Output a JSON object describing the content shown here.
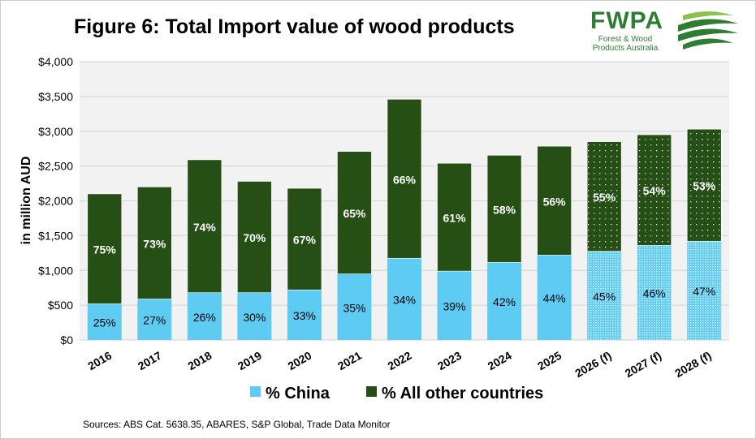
{
  "title": "Figure 6: Total Import value of wood products",
  "logo": {
    "text": "FWPA",
    "subtitle_line1": "Forest & Wood",
    "subtitle_line2": "Products Australia"
  },
  "source": "Sources: ABS Cat. 5638.35, ABARES, S&P Global, Trade Data Monitor",
  "colors": {
    "china": "#5ecbf3",
    "other": "#264f16",
    "plot_bg": "#f2f2f2",
    "logo": "#2e7d32"
  },
  "chart_data": {
    "type": "bar",
    "stacked": true,
    "title": "Figure 6: Total Import value of wood products",
    "ylabel": "in million AUD",
    "xlabel": "",
    "ylim": [
      0,
      4000
    ],
    "yticks": [
      "$0",
      "$500",
      "$1,000",
      "$1,500",
      "$2,000",
      "$2,500",
      "$3,000",
      "$3,500",
      "$4,000"
    ],
    "grid": true,
    "legend_position": "bottom",
    "categories": [
      "2016",
      "2017",
      "2018",
      "2019",
      "2020",
      "2021",
      "2022",
      "2023",
      "2024",
      "2025",
      "2026 (f)",
      "2027 (f)",
      "2028 (f)"
    ],
    "forecast": [
      false,
      false,
      false,
      false,
      false,
      false,
      false,
      false,
      false,
      false,
      true,
      true,
      true
    ],
    "series": [
      {
        "name": "% China",
        "values": [
          520,
          590,
          680,
          680,
          720,
          950,
          1175,
          990,
          1115,
          1220,
          1275,
          1360,
          1420
        ],
        "labels": [
          "25%",
          "27%",
          "26%",
          "30%",
          "33%",
          "35%",
          "34%",
          "39%",
          "42%",
          "44%",
          "45%",
          "46%",
          "47%"
        ]
      },
      {
        "name": "% All other countries",
        "values": [
          1580,
          1610,
          1910,
          1600,
          1460,
          1760,
          2285,
          1550,
          1540,
          1565,
          1575,
          1590,
          1610
        ],
        "labels": [
          "75%",
          "73%",
          "74%",
          "70%",
          "67%",
          "65%",
          "66%",
          "61%",
          "58%",
          "56%",
          "55%",
          "54%",
          "53%"
        ]
      }
    ]
  }
}
